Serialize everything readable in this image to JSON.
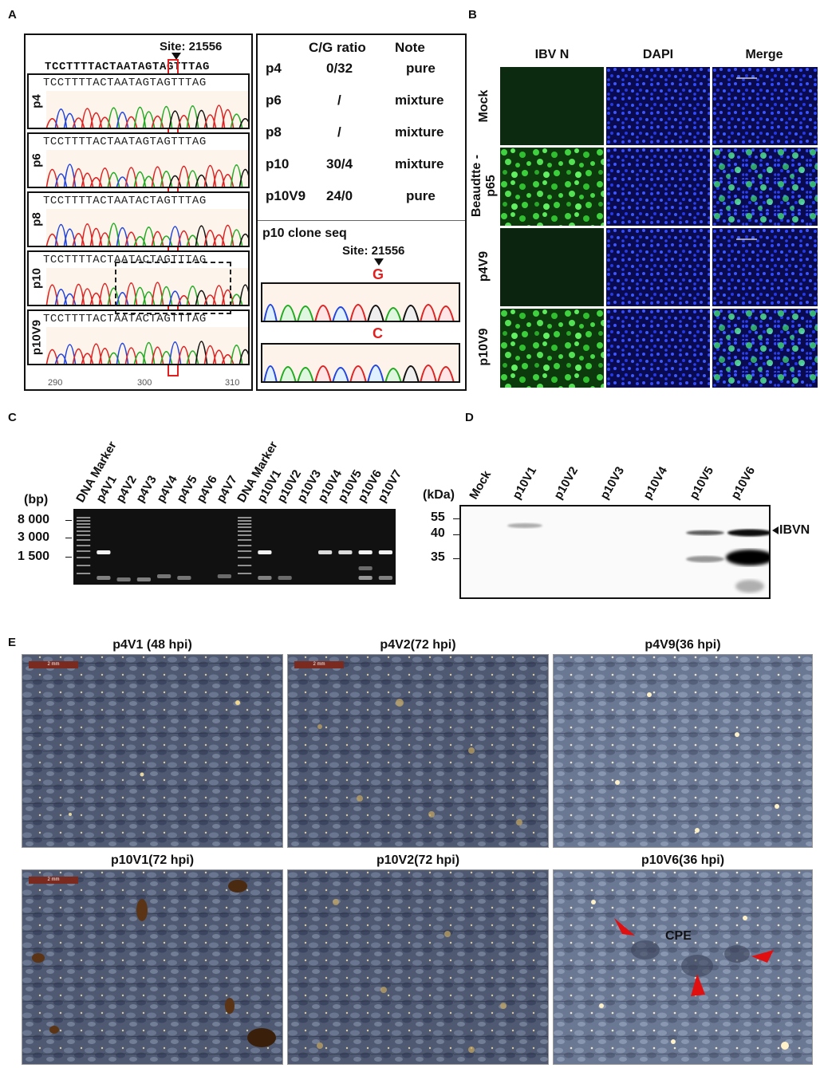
{
  "panels": {
    "a": {
      "letter": "A",
      "site_label": "Site: 21556",
      "reference_seq": "TCCTTTTACTAATAGTAGTTTAG",
      "traces": [
        {
          "label": "p4",
          "seq": "TCCTTTTACTAATAGTAGTTTAG"
        },
        {
          "label": "p6",
          "seq": "TCCTTTTACTAATAGTAGTTTAG"
        },
        {
          "label": "p8",
          "seq": "TCCTTTTACTAATACTAGTTTAG"
        },
        {
          "label": "p10",
          "seq": "TCCTTTTACTAATACTAGTTTAG"
        },
        {
          "label": "p10V9",
          "seq": "TCCTTTTACTAATACTAGTTTAG"
        }
      ],
      "axis_ticks": [
        "290",
        "300",
        "310"
      ],
      "table": {
        "header_ratio": "C/G ratio",
        "header_note": "Note",
        "rows": [
          {
            "sample": "p4",
            "ratio": "0/32",
            "note": "pure"
          },
          {
            "sample": "p6",
            "ratio": "/",
            "note": "mixture"
          },
          {
            "sample": "p8",
            "ratio": "/",
            "note": "mixture"
          },
          {
            "sample": "p10",
            "ratio": "30/4",
            "note": "mixture"
          },
          {
            "sample": "p10V9",
            "ratio": "24/0",
            "note": "pure"
          }
        ]
      },
      "clone_title": "p10 clone seq",
      "clone_site": "Site: 21556",
      "clone_bases": [
        "G",
        "C"
      ]
    },
    "b": {
      "letter": "B",
      "columns": [
        "IBV N",
        "DAPI",
        "Merge"
      ],
      "rows": [
        "Mock",
        "Beaudtte -p65",
        "p4V9",
        "p10V9"
      ]
    },
    "c": {
      "letter": "C",
      "unit_label": "(bp)",
      "size_labels": [
        "8 000",
        "3 000",
        "1 500"
      ],
      "lanes": [
        "DNA Marker",
        "p4V1",
        "p4V2",
        "p4V3",
        "p4V4",
        "p4V5",
        "p4V6",
        "p4V7",
        "DNA Marker",
        "p10V1",
        "p10V2",
        "p10V3",
        "p10V4",
        "p10V5",
        "p10V6",
        "p10V7"
      ]
    },
    "d": {
      "letter": "D",
      "unit_label": "(kDa)",
      "size_labels": [
        "55",
        "40",
        "35"
      ],
      "lanes": [
        "Mock",
        "p10V1",
        "p10V2",
        "p10V3",
        "p10V4",
        "p10V5",
        "p10V6"
      ],
      "band_label": "IBVN"
    },
    "e": {
      "letter": "E",
      "images": [
        {
          "title": "p4V1 (48 hpi)",
          "scale": "2 mm"
        },
        {
          "title": "p4V2(72 hpi)",
          "scale": "2 mm"
        },
        {
          "title": "p4V9(36 hpi)",
          "scale": ""
        },
        {
          "title": "p10V1(72 hpi)",
          "scale": "2 mm"
        },
        {
          "title": "p10V2(72 hpi)",
          "scale": ""
        },
        {
          "title": "p10V6(36 hpi)",
          "scale": ""
        }
      ],
      "cpe_label": "CPE"
    }
  }
}
